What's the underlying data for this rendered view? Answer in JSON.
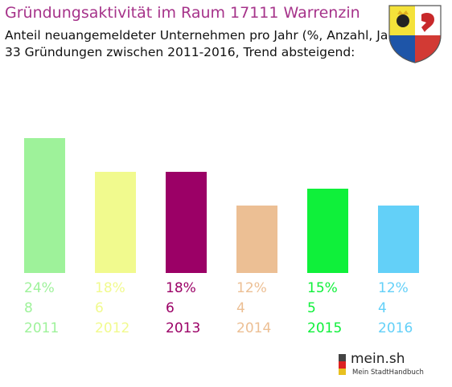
{
  "title": "Gründungsaktivität im Raum 17111 Warrenzin",
  "subtitle_line1": "Anteil neuangemeldeter Unternehmen pro Jahr (%, Anzahl, Jahr)",
  "subtitle_line2": "33 Gründungen zwischen 2011-2016, Trend absteigend:",
  "brand": {
    "name": "mein.sh",
    "tagline": "Mein StadtHandbuch"
  },
  "chart_data": {
    "type": "bar",
    "categories": [
      "2011",
      "2012",
      "2013",
      "2014",
      "2015",
      "2016"
    ],
    "values": [
      24,
      18,
      18,
      12,
      15,
      12
    ],
    "percent_labels": [
      "24%",
      "18%",
      "18%",
      "12%",
      "15%",
      "12%"
    ],
    "counts": [
      "8",
      "6",
      "6",
      "4",
      "5",
      "4"
    ],
    "colors": [
      "#9ef29a",
      "#f1fa8e",
      "#9b0066",
      "#ecbf94",
      "#0ff03a",
      "#63d0f8"
    ],
    "total": 33,
    "ylim": [
      0,
      24
    ]
  }
}
